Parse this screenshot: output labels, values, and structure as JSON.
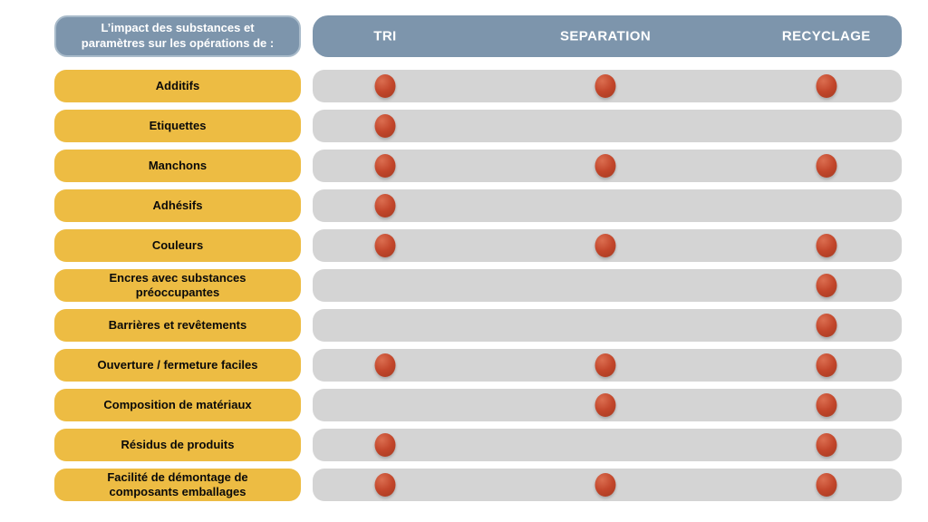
{
  "header": {
    "title": "L’impact des substances et\nparamètres sur les opérations de :",
    "columns": [
      "TRI",
      "SEPARATION",
      "RECYCLAGE"
    ]
  },
  "layout": {
    "column_positions_pct": [
      12.3,
      49.7,
      87.2
    ]
  },
  "colors": {
    "header_blue": "#7d95ac",
    "header_border": "#a9bbca",
    "label_yellow": "#edbc43",
    "row_gray": "#d4d4d4",
    "dot_red": "#c2462b",
    "page_bg": "#ffffff"
  },
  "legend": {
    "dot_meaning": "impact présent"
  },
  "rows": [
    {
      "label": "Additifs",
      "impacts": [
        true,
        true,
        true
      ]
    },
    {
      "label": "Etiquettes",
      "impacts": [
        true,
        false,
        false
      ]
    },
    {
      "label": "Manchons",
      "impacts": [
        true,
        true,
        true
      ]
    },
    {
      "label": "Adhésifs",
      "impacts": [
        true,
        false,
        false
      ]
    },
    {
      "label": "Couleurs",
      "impacts": [
        true,
        true,
        true
      ]
    },
    {
      "label": "Encres avec substances\npréoccupantes",
      "impacts": [
        false,
        false,
        true
      ]
    },
    {
      "label": "Barrières et revêtements",
      "impacts": [
        false,
        false,
        true
      ]
    },
    {
      "label": "Ouverture / fermeture faciles",
      "impacts": [
        true,
        true,
        true
      ]
    },
    {
      "label": "Composition de matériaux",
      "impacts": [
        false,
        true,
        true
      ]
    },
    {
      "label": "Résidus de produits",
      "impacts": [
        true,
        false,
        true
      ]
    },
    {
      "label": "Facilité de démontage de\ncomposants emballages",
      "impacts": [
        true,
        true,
        true
      ]
    }
  ]
}
